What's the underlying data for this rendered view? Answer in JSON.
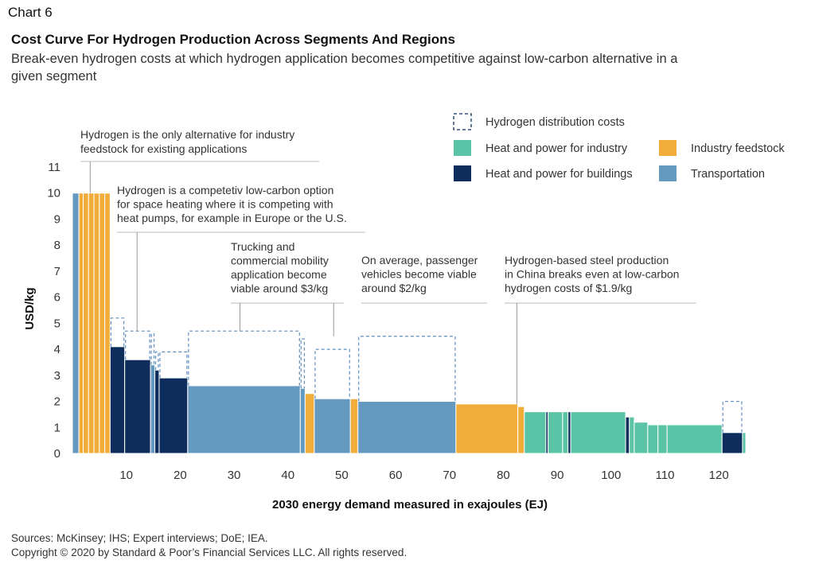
{
  "chart_label": "Chart 6",
  "footer": {
    "sources": "Sources: McKinsey; IHS; Expert interviews; DoE; IEA.",
    "copyright": "Copyright © 2020 by Standard & Poor’s Financial Services LLC. All rights reserved."
  },
  "colors": {
    "industry_feedstock": "#f2ac3a",
    "transportation": "#6499c0",
    "buildings": "#0e2d5c",
    "industry_heat": "#5cc4a6",
    "distribution_outline": "#5f8fc0"
  },
  "chart_data": {
    "type": "bar",
    "title": "Cost Curve For Hydrogen Production Across Segments And Regions",
    "subtitle": "Break-even hydrogen costs at which hydrogen application becomes competitive against low-carbon alternative in a given segment",
    "xlabel": "2030 energy demand measured in exajoules (EJ)",
    "ylabel": "USD/kg",
    "xlim": [
      0,
      125
    ],
    "ylim": [
      0,
      11
    ],
    "x_ticks": [
      10,
      20,
      30,
      40,
      50,
      60,
      70,
      80,
      90,
      100,
      110,
      120
    ],
    "y_ticks": [
      0,
      1,
      2,
      3,
      4,
      5,
      6,
      7,
      8,
      9,
      10,
      11
    ],
    "legend": [
      {
        "key": "distribution",
        "label": "Hydrogen distribution costs"
      },
      {
        "key": "industry_heat",
        "label": "Heat and power for industry"
      },
      {
        "key": "industry_feedstock",
        "label": "Industry feedstock"
      },
      {
        "key": "buildings",
        "label": "Heat and power for buildings"
      },
      {
        "key": "transportation",
        "label": "Transportation"
      }
    ],
    "bars": [
      {
        "x0": 0,
        "x1": 1.2,
        "value": 10.0,
        "segment": "transportation"
      },
      {
        "x0": 1.2,
        "x1": 2.0,
        "value": 10.0,
        "segment": "industry_feedstock"
      },
      {
        "x0": 2.0,
        "x1": 3.0,
        "value": 10.0,
        "segment": "industry_feedstock"
      },
      {
        "x0": 3.0,
        "x1": 4.0,
        "value": 10.0,
        "segment": "industry_feedstock"
      },
      {
        "x0": 4.0,
        "x1": 5.0,
        "value": 10.0,
        "segment": "industry_feedstock"
      },
      {
        "x0": 5.0,
        "x1": 6.0,
        "value": 10.0,
        "segment": "industry_feedstock"
      },
      {
        "x0": 6.0,
        "x1": 7.0,
        "value": 10.0,
        "segment": "industry_feedstock"
      },
      {
        "x0": 7.0,
        "x1": 9.7,
        "value": 4.1,
        "segment": "buildings",
        "dist_top": 5.2
      },
      {
        "x0": 9.7,
        "x1": 14.5,
        "value": 3.6,
        "segment": "buildings",
        "dist_top": 4.7
      },
      {
        "x0": 14.5,
        "x1": 15.3,
        "value": 3.4,
        "segment": "transportation",
        "dist_top": 4.6
      },
      {
        "x0": 15.3,
        "x1": 16.1,
        "value": 3.2,
        "segment": "buildings",
        "dist_top": 3.9
      },
      {
        "x0": 16.1,
        "x1": 21.4,
        "value": 2.9,
        "segment": "buildings",
        "dist_top": 3.9
      },
      {
        "x0": 21.4,
        "x1": 42.3,
        "value": 2.6,
        "segment": "transportation",
        "dist_top": 4.7
      },
      {
        "x0": 42.3,
        "x1": 43.2,
        "value": 2.5,
        "segment": "transportation",
        "dist_top": 4.4
      },
      {
        "x0": 43.2,
        "x1": 44.9,
        "value": 2.3,
        "segment": "industry_feedstock"
      },
      {
        "x0": 44.9,
        "x1": 51.6,
        "value": 2.1,
        "segment": "transportation",
        "dist_top": 4.0
      },
      {
        "x0": 51.6,
        "x1": 53.0,
        "value": 2.1,
        "segment": "industry_feedstock"
      },
      {
        "x0": 53.0,
        "x1": 71.2,
        "value": 2.0,
        "segment": "transportation",
        "dist_top": 4.5
      },
      {
        "x0": 71.2,
        "x1": 82.7,
        "value": 1.9,
        "segment": "industry_feedstock"
      },
      {
        "x0": 82.7,
        "x1": 83.9,
        "value": 1.8,
        "segment": "industry_feedstock"
      },
      {
        "x0": 83.9,
        "x1": 87.9,
        "value": 1.6,
        "segment": "industry_heat"
      },
      {
        "x0": 87.9,
        "x1": 88.3,
        "value": 1.6,
        "segment": "buildings"
      },
      {
        "x0": 88.3,
        "x1": 91.0,
        "value": 1.6,
        "segment": "industry_heat"
      },
      {
        "x0": 91.0,
        "x1": 92.0,
        "value": 1.6,
        "segment": "industry_heat"
      },
      {
        "x0": 92.0,
        "x1": 92.5,
        "value": 1.6,
        "segment": "buildings"
      },
      {
        "x0": 92.5,
        "x1": 102.7,
        "value": 1.6,
        "segment": "industry_heat"
      },
      {
        "x0": 102.7,
        "x1": 103.4,
        "value": 1.4,
        "segment": "buildings"
      },
      {
        "x0": 103.4,
        "x1": 104.3,
        "value": 1.4,
        "segment": "industry_heat"
      },
      {
        "x0": 104.3,
        "x1": 106.8,
        "value": 1.2,
        "segment": "industry_heat"
      },
      {
        "x0": 106.8,
        "x1": 108.7,
        "value": 1.1,
        "segment": "industry_heat"
      },
      {
        "x0": 108.7,
        "x1": 110.4,
        "value": 1.1,
        "segment": "industry_heat"
      },
      {
        "x0": 110.4,
        "x1": 120.6,
        "value": 1.1,
        "segment": "industry_heat"
      },
      {
        "x0": 120.6,
        "x1": 124.4,
        "value": 0.8,
        "segment": "buildings",
        "dist_top": 2.0
      },
      {
        "x0": 124.4,
        "x1": 125.0,
        "value": 0.8,
        "segment": "industry_heat"
      }
    ],
    "annotations": [
      {
        "text": [
          "Hydrogen is the only alternative for industry",
          "feedstock for existing applications"
        ],
        "x": 3.3
      },
      {
        "text": [
          "Hydrogen is a competetiv low-carbon option",
          "for space heating where it is competing with",
          "heat pumps, for example in Europe or the U.S."
        ],
        "x": 12.0
      },
      {
        "text": [
          "Trucking and",
          "commercial mobility",
          "application become",
          "viable around $3/kg"
        ],
        "x": 31.0
      },
      {
        "text": [
          "On average, passenger",
          "vehicles become viable",
          "around $2/kg"
        ],
        "x": 48.0
      },
      {
        "text": [
          "Hydrogen-based steel production",
          "in China breaks even at low-carbon",
          "hydrogen costs of $1.9/kg"
        ],
        "x": 62.0
      },
      {
        "text": [],
        "x": 82.5
      }
    ]
  }
}
